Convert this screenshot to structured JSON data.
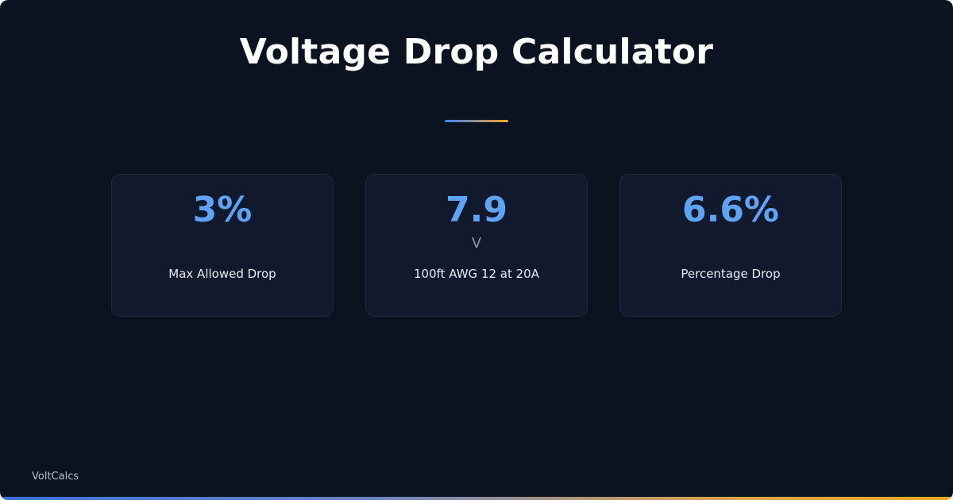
{
  "header": {
    "title": "Voltage Drop Calculator"
  },
  "stats": [
    {
      "value": "3%",
      "unit": "",
      "label": "Max Allowed Drop"
    },
    {
      "value": "7.9",
      "unit": "V",
      "label": "100ft AWG 12 at 20A"
    },
    {
      "value": "6.6%",
      "unit": "",
      "label": "Percentage Drop"
    }
  ],
  "footer": {
    "brand": "VoltCalcs"
  },
  "colors": {
    "background": "#0b1220",
    "card": "#111a2c",
    "accent_blue": "#5fa3f5",
    "accent_orange": "#f5a524"
  }
}
